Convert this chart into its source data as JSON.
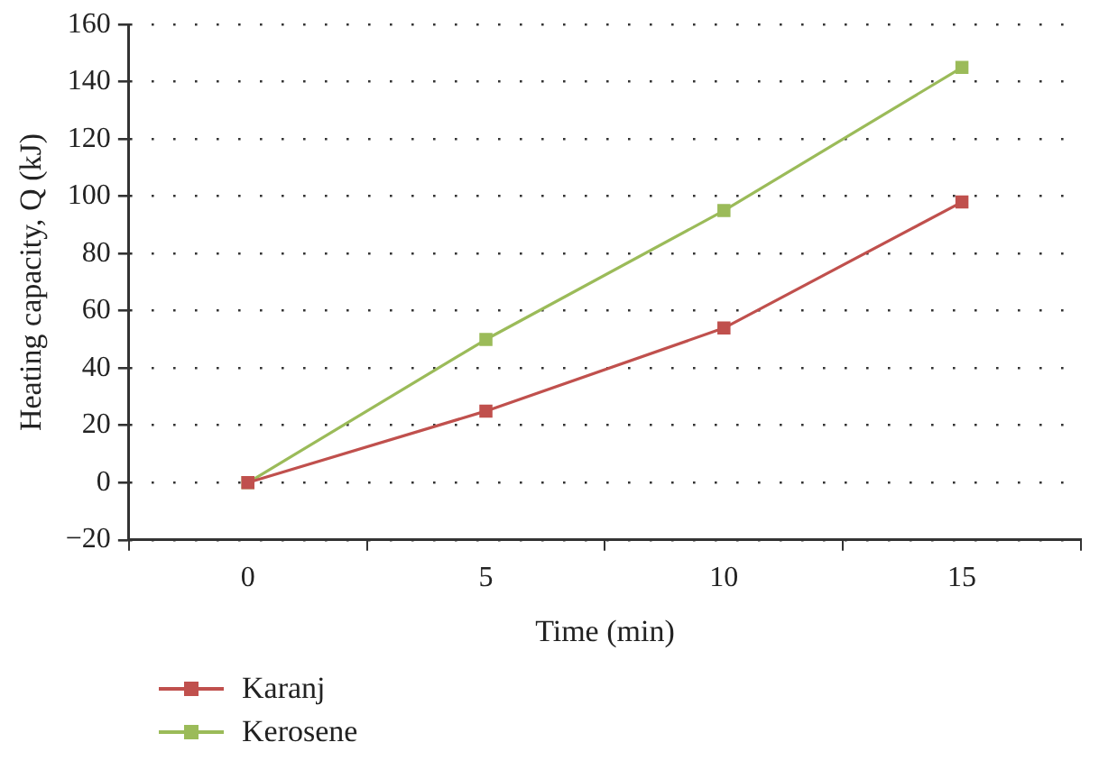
{
  "chart_data": {
    "type": "line",
    "xlabel": "Time (min)",
    "ylabel": "Heating capacity, Q (kJ)",
    "categories": [
      "0",
      "5",
      "10",
      "15"
    ],
    "series": [
      {
        "name": "Karanj",
        "color": "#c0504d",
        "values": [
          0,
          25,
          54,
          98
        ]
      },
      {
        "name": "Kerosene",
        "color": "#9bbb59",
        "values": [
          0,
          50,
          95,
          145
        ]
      }
    ],
    "ylim": [
      -20,
      160
    ],
    "yticks": [
      -20,
      0,
      20,
      40,
      60,
      80,
      100,
      120,
      140,
      160
    ],
    "grid": "y",
    "legend": "bottom left",
    "marker": "square",
    "line_style": "solid"
  }
}
